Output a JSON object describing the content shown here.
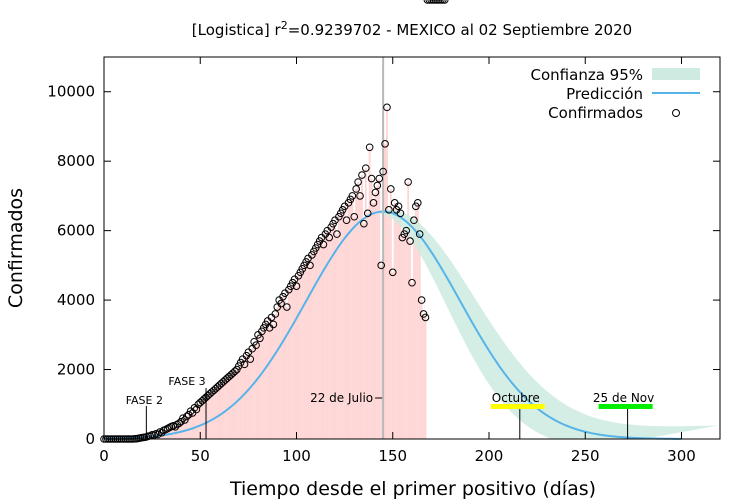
{
  "chart_data": {
    "type": "bar",
    "title_prefix": "[Logistica] r",
    "title_sup": "2",
    "title_suffix": "=0.9239702 - MEXICO al 02 Septiembre 2020",
    "xlabel": "Tiempo desde el primer positivo (días)",
    "ylabel": "Confirmados",
    "xlim": [
      0,
      320
    ],
    "ylim": [
      0,
      11000
    ],
    "xticks": [
      0,
      50,
      100,
      150,
      200,
      250,
      300
    ],
    "yticks": [
      0,
      2000,
      4000,
      6000,
      8000,
      10000
    ],
    "legend_position": "top-right",
    "legend": [
      "Confianza 95%",
      "Predicción",
      "Confirmados"
    ],
    "colors": {
      "bars": "#ffd6d6",
      "prediction": "#56b4e9",
      "confidence": "#cdebe1",
      "vline": "#b8b8b8",
      "octubre": "#ffff00",
      "noviembre": "#00ee00"
    },
    "prediction_model": {
      "peak_day": 145,
      "peak_value": 6550,
      "width": 40
    },
    "confirmed_x": [
      0,
      1,
      2,
      3,
      4,
      5,
      6,
      7,
      8,
      9,
      10,
      11,
      12,
      13,
      14,
      15,
      16,
      17,
      18,
      19,
      20,
      21,
      22,
      23,
      24,
      25,
      26,
      27,
      28,
      29,
      30,
      31,
      32,
      33,
      34,
      35,
      36,
      37,
      38,
      39,
      40,
      41,
      42,
      43,
      44,
      45,
      46,
      47,
      48,
      49,
      50,
      51,
      52,
      53,
      54,
      55,
      56,
      57,
      58,
      59,
      60,
      61,
      62,
      63,
      64,
      65,
      66,
      67,
      68,
      69,
      70,
      71,
      72,
      73,
      74,
      75,
      76,
      77,
      78,
      79,
      80,
      81,
      82,
      83,
      84,
      85,
      86,
      87,
      88,
      89,
      90,
      91,
      92,
      93,
      94,
      95,
      96,
      97,
      98,
      99,
      100,
      101,
      102,
      103,
      104,
      105,
      106,
      107,
      108,
      109,
      110,
      111,
      112,
      113,
      114,
      115,
      116,
      117,
      118,
      119,
      120,
      121,
      122,
      123,
      124,
      125,
      126,
      127,
      128,
      129,
      130,
      131,
      132,
      133,
      134,
      135,
      136,
      137,
      138,
      139,
      140,
      141,
      142,
      143,
      144,
      145,
      146,
      147,
      148,
      149,
      150,
      151,
      152,
      153,
      154,
      155,
      156,
      157,
      158,
      159,
      160,
      161,
      162,
      163,
      164,
      165,
      166,
      167,
      168,
      169,
      170,
      171,
      172,
      173,
      174,
      175,
      176,
      177
    ],
    "confirmed_y": [
      0,
      0,
      0,
      0,
      0,
      0,
      0,
      0,
      0,
      0,
      0,
      0,
      0,
      0,
      0,
      0,
      5,
      10,
      20,
      30,
      40,
      50,
      60,
      80,
      90,
      120,
      110,
      150,
      130,
      200,
      180,
      250,
      270,
      300,
      330,
      360,
      380,
      350,
      420,
      450,
      500,
      600,
      550,
      650,
      700,
      800,
      750,
      900,
      850,
      1000,
      1050,
      1100,
      1150,
      1200,
      1250,
      1300,
      1350,
      1400,
      1450,
      1500,
      1550,
      1600,
      1650,
      1700,
      1750,
      1800,
      1850,
      1900,
      1950,
      2000,
      2100,
      2200,
      2300,
      2150,
      2400,
      2500,
      2300,
      2600,
      2800,
      2700,
      3000,
      2900,
      3100,
      3200,
      3300,
      3400,
      3200,
      3500,
      3300,
      3600,
      3800,
      4000,
      3900,
      4100,
      4200,
      3800,
      4300,
      4400,
      4500,
      4600,
      4400,
      4700,
      4800,
      4900,
      5000,
      5100,
      5200,
      5000,
      5300,
      5400,
      5500,
      5600,
      5700,
      5800,
      5600,
      5900,
      6000,
      5800,
      6100,
      6200,
      6300,
      5900,
      6400,
      6500,
      6600,
      6700,
      6300,
      6800,
      6900,
      7000,
      6400,
      7200,
      7400,
      7000,
      7600,
      6200,
      7800,
      6500,
      8400,
      7500,
      6800,
      7100,
      7300,
      7500,
      5000,
      7700,
      8500,
      9550,
      6600,
      7200,
      4800,
      6800,
      6600,
      6700,
      6500,
      5800,
      5900,
      6000,
      7400,
      5700,
      4500,
      6300,
      6700,
      6800,
      5900,
      4000,
      3600,
      3500
    ],
    "annotations": {
      "fase2": {
        "x": 22,
        "label": "FASE 2"
      },
      "fase3": {
        "x": 53,
        "label": "FASE 3"
      },
      "julio": {
        "x": 145,
        "label": "22 de Julio"
      },
      "octubre": {
        "x": 216,
        "label": "Octubre"
      },
      "noviembre": {
        "x": 272,
        "label": "25 de Nov"
      }
    }
  }
}
